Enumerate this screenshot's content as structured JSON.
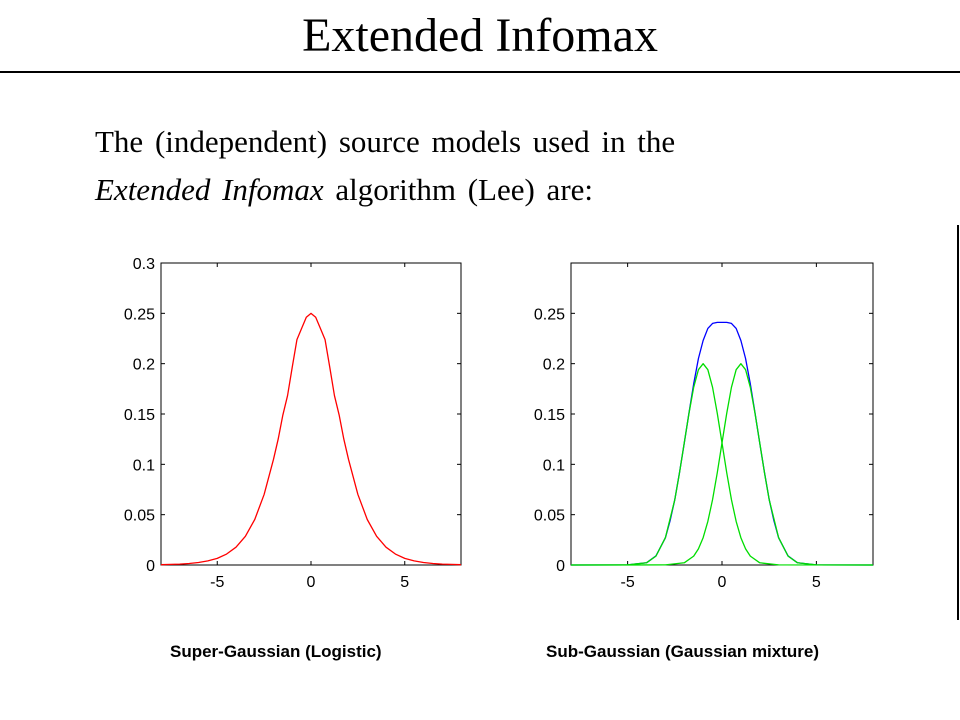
{
  "slide": {
    "title": "Extended Infomax",
    "intro_line1": "The (independent) source models used in the",
    "intro_line2_italic": "Extended Infomax",
    "intro_line2_rest": " algorithm (Lee) are:"
  },
  "captions": {
    "left": "Super-Gaussian (Logistic)",
    "right": "Sub-Gaussian (Gaussian mixture)"
  },
  "chart_data": [
    {
      "type": "line",
      "title": "",
      "xlabel": "",
      "ylabel": "",
      "xlim": [
        -8,
        8
      ],
      "ylim": [
        0,
        0.3
      ],
      "xticks": [
        -5,
        0,
        5
      ],
      "xtick_labels": [
        "-5",
        "0",
        "5"
      ],
      "yticks": [
        0,
        0.05,
        0.1,
        0.15,
        0.2,
        0.25,
        0.3
      ],
      "ytick_labels": [
        "0",
        "0.05",
        "0.1",
        "0.15",
        "0.2",
        "0.25",
        "0.3"
      ],
      "grid": false,
      "box": true,
      "series": [
        {
          "color": "#ff0000",
          "x": [
            -8,
            -7.5,
            -7,
            -6.5,
            -6,
            -5.5,
            -5,
            -4.5,
            -4,
            -3.5,
            -3,
            -2.5,
            -2,
            -1.75,
            -1.5,
            -1.25,
            -1,
            -0.75,
            -0.5,
            -0.25,
            0,
            0.25,
            0.5,
            0.75,
            1,
            1.25,
            1.5,
            1.75,
            2,
            2.5,
            3,
            3.5,
            4,
            4.5,
            5,
            5.5,
            6,
            6.5,
            7,
            7.5,
            8
          ],
          "y": [
            0.0003,
            0.0006,
            0.0009,
            0.0015,
            0.0025,
            0.0041,
            0.0066,
            0.0109,
            0.0177,
            0.0285,
            0.0452,
            0.0701,
            0.105,
            0.1251,
            0.1491,
            0.1683,
            0.1966,
            0.2239,
            0.235,
            0.2461,
            0.25,
            0.2461,
            0.235,
            0.2239,
            0.1966,
            0.1683,
            0.1491,
            0.1251,
            0.105,
            0.0701,
            0.0452,
            0.0285,
            0.0177,
            0.0109,
            0.0066,
            0.0041,
            0.0025,
            0.0015,
            0.0009,
            0.0006,
            0.0003
          ]
        }
      ]
    },
    {
      "type": "line",
      "title": "",
      "xlabel": "",
      "ylabel": "",
      "xlim": [
        -8,
        8
      ],
      "ylim": [
        0,
        0.3
      ],
      "xticks": [
        -5,
        0,
        5
      ],
      "xtick_labels": [
        "-5",
        "0",
        "5"
      ],
      "yticks": [
        0,
        0.05,
        0.1,
        0.15,
        0.2,
        0.25
      ],
      "ytick_labels": [
        "0",
        "0.05",
        "0.1",
        "0.15",
        "0.2",
        "0.25"
      ],
      "grid": false,
      "box": true,
      "series": [
        {
          "color": "#0000ff",
          "x": [
            -8,
            -5,
            -4,
            -3.5,
            -3,
            -2.75,
            -2.5,
            -2.25,
            -2,
            -1.75,
            -1.5,
            -1.25,
            -1,
            -0.75,
            -0.5,
            -0.25,
            0,
            0.25,
            0.5,
            0.75,
            1,
            1.25,
            1.5,
            1.75,
            2,
            2.25,
            2.5,
            2.75,
            3,
            3.5,
            4,
            5,
            8
          ],
          "y": [
            0,
            0.0001,
            0.0022,
            0.009,
            0.027,
            0.044,
            0.065,
            0.092,
            0.121,
            0.151,
            0.18,
            0.205,
            0.223,
            0.235,
            0.24,
            0.241,
            0.241,
            0.241,
            0.24,
            0.235,
            0.223,
            0.205,
            0.18,
            0.151,
            0.121,
            0.092,
            0.065,
            0.044,
            0.027,
            0.009,
            0.0022,
            0.0001,
            0
          ]
        },
        {
          "color": "#00dd00",
          "x": [
            -8,
            -5,
            -4,
            -3.5,
            -3,
            -2.5,
            -2.25,
            -2,
            -1.75,
            -1.5,
            -1.25,
            -1,
            -0.75,
            -0.5,
            -0.25,
            0,
            0.25,
            0.5,
            0.75,
            1,
            1.25,
            1.5,
            2,
            3,
            8
          ],
          "y": [
            0,
            0.0001,
            0.0022,
            0.0088,
            0.0271,
            0.0649,
            0.0917,
            0.1213,
            0.1506,
            0.1765,
            0.194,
            0.2,
            0.194,
            0.1765,
            0.1506,
            0.1213,
            0.0917,
            0.0649,
            0.0433,
            0.0271,
            0.016,
            0.0088,
            0.0022,
            0.0001,
            0
          ]
        },
        {
          "color": "#00dd00",
          "x": [
            -8,
            -3,
            -2,
            -1.5,
            -1.25,
            -1,
            -0.75,
            -0.5,
            -0.25,
            0,
            0.25,
            0.5,
            0.75,
            1,
            1.25,
            1.5,
            1.75,
            2,
            2.25,
            2.5,
            3,
            3.5,
            4,
            5,
            8
          ],
          "y": [
            0,
            0.0001,
            0.0022,
            0.0088,
            0.016,
            0.0271,
            0.0433,
            0.0649,
            0.0917,
            0.1213,
            0.1506,
            0.1765,
            0.194,
            0.2,
            0.194,
            0.1765,
            0.1506,
            0.1213,
            0.0917,
            0.0649,
            0.0271,
            0.0088,
            0.0022,
            0.0001,
            0
          ]
        }
      ]
    }
  ]
}
